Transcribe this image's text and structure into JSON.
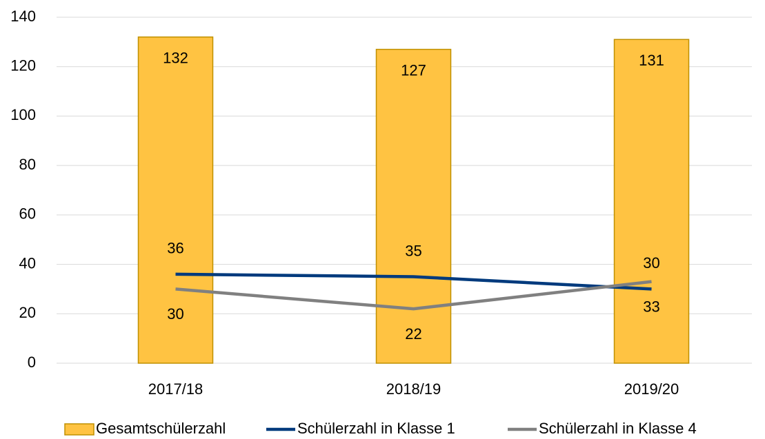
{
  "chart_data": {
    "type": "bar",
    "categories": [
      "2017/18",
      "2018/19",
      "2019/20"
    ],
    "series": [
      {
        "name": "Gesamtschülerzahl",
        "type": "bar",
        "color": "#ffc342",
        "values": [
          132,
          127,
          131
        ]
      },
      {
        "name": "Schülerzahl in Klasse 1",
        "type": "line",
        "color": "#003a7d",
        "values": [
          36,
          35,
          30
        ]
      },
      {
        "name": "Schülerzahl in Klasse 4",
        "type": "line",
        "color": "#808080",
        "values": [
          30,
          22,
          33
        ]
      }
    ],
    "ylim": [
      0,
      140
    ],
    "yticks": [
      0,
      20,
      40,
      60,
      80,
      100,
      120,
      140
    ],
    "grid": true,
    "legend": "bottom"
  }
}
